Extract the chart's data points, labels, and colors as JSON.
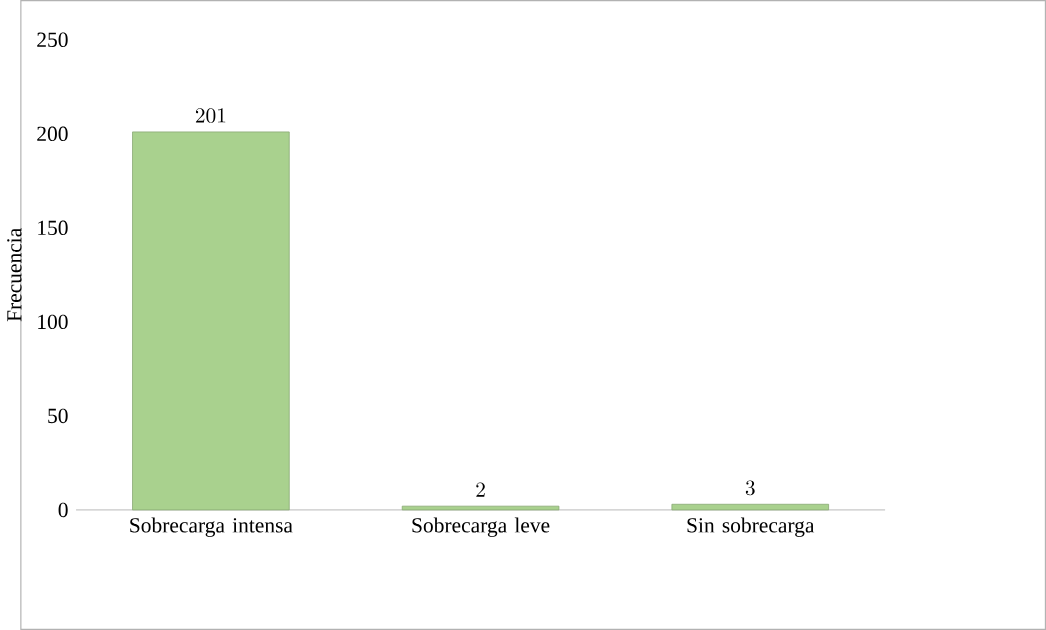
{
  "chart_data": {
    "type": "bar",
    "ylabel": "Frecuencia",
    "categories": [
      "Sobrecarga intensa",
      "Sobrecarga leve",
      "Sin sobrecarga"
    ],
    "values": [
      201,
      2,
      3
    ],
    "color": "#a9d18e",
    "ylim": [
      0,
      250
    ],
    "yticks": [
      0,
      50,
      100,
      150,
      200,
      250
    ],
    "grid": false,
    "data_labels": true
  }
}
